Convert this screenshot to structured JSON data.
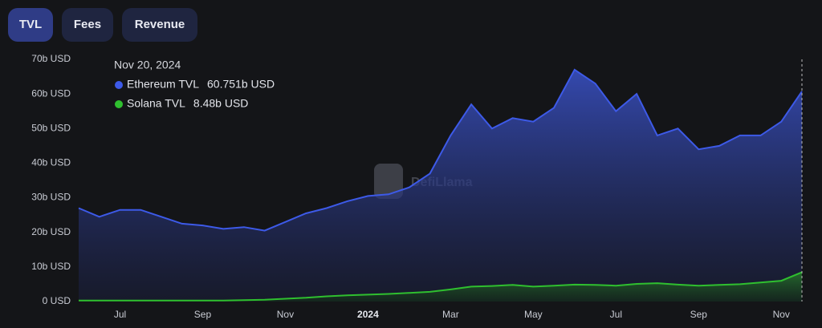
{
  "tabs": {
    "items": [
      "TVL",
      "Fees",
      "Revenue"
    ],
    "active": 0
  },
  "chart_data": {
    "type": "area",
    "watermark": "DefiLlama",
    "categories": [
      null,
      null,
      "Jul",
      null,
      null,
      null,
      "Sep",
      null,
      null,
      null,
      "Nov",
      null,
      null,
      null,
      "2024",
      null,
      null,
      null,
      "Mar",
      null,
      null,
      null,
      "May",
      null,
      null,
      null,
      "Jul",
      null,
      null,
      null,
      "Sep",
      null,
      null,
      null,
      "Nov",
      null
    ],
    "series": [
      {
        "name": "Ethereum TVL",
        "color": "#3d5ae8",
        "values": [
          27,
          24.5,
          26.5,
          26.5,
          24.5,
          22.5,
          22,
          21,
          21.5,
          20.5,
          23,
          25.5,
          27,
          29,
          30.5,
          31,
          33,
          37,
          48,
          57,
          50,
          53,
          52,
          56,
          67,
          63,
          55,
          60,
          48,
          50,
          44,
          45,
          48,
          48,
          52,
          60.751
        ]
      },
      {
        "name": "Solana TVL",
        "color": "#2fbf2f",
        "values": [
          0.3,
          0.3,
          0.3,
          0.3,
          0.3,
          0.3,
          0.3,
          0.3,
          0.4,
          0.5,
          0.8,
          1.1,
          1.5,
          1.8,
          2,
          2.2,
          2.5,
          2.8,
          3.5,
          4.3,
          4.5,
          4.8,
          4.3,
          4.6,
          4.9,
          4.8,
          4.6,
          5.1,
          5.3,
          4.9,
          4.6,
          4.8,
          5,
          5.5,
          6,
          8.48
        ]
      }
    ],
    "ylim": [
      0,
      70
    ],
    "yticks": [
      {
        "value": 0,
        "label": "0 USD"
      },
      {
        "value": 10,
        "label": "10b USD"
      },
      {
        "value": 20,
        "label": "20b USD"
      },
      {
        "value": 30,
        "label": "30b USD"
      },
      {
        "value": 40,
        "label": "40b USD"
      },
      {
        "value": 50,
        "label": "50b USD"
      },
      {
        "value": 60,
        "label": "60b USD"
      },
      {
        "value": 70,
        "label": "70b USD"
      }
    ],
    "tooltip": {
      "date": "Nov 20, 2024",
      "value_labels": [
        "60.751b USD",
        "8.48b USD"
      ]
    }
  }
}
